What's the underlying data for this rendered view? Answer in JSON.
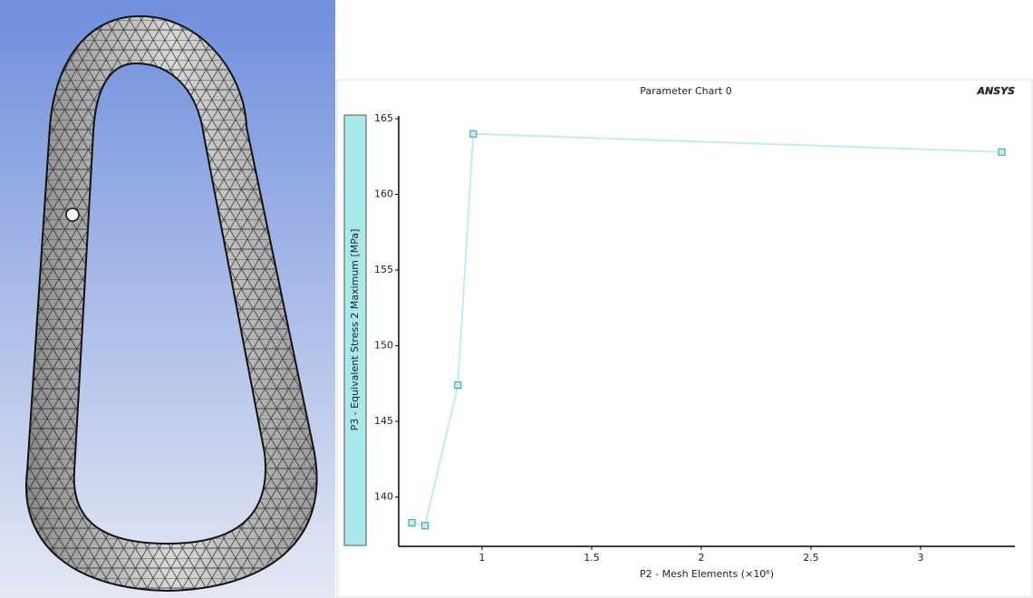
{
  "chart_data": {
    "type": "line",
    "title": "Parameter Chart 0",
    "logo": "ANSYS",
    "x_label": "P2 - Mesh Elements  (×10⁶)",
    "y_label": "P3 - Equivalent Stress 2 Maximum  [MPa]",
    "x": [
      0.68,
      0.74,
      0.89,
      0.96,
      3.37
    ],
    "series": [
      {
        "color": "#bfeeee",
        "values": [
          138.3,
          138.1,
          147.4,
          164.0,
          162.8
        ]
      }
    ],
    "xlim": [
      0.62,
      3.43
    ],
    "xticks": [
      1,
      1.5,
      2,
      2.5,
      3
    ],
    "ylim": [
      136.74,
      165.18
    ],
    "yticks": [
      140,
      145,
      150,
      155,
      160,
      165
    ],
    "grid": false
  }
}
